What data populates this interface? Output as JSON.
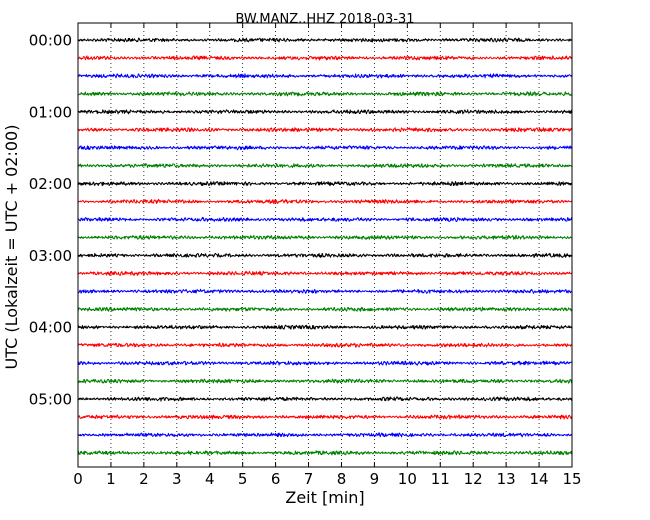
{
  "chart_data": {
    "type": "line",
    "chart_subtype": "seismogram-helicorder",
    "title": "BW.MANZ..HHZ 2018-03-31",
    "xlabel": "Zeit  [min]",
    "ylabel": "UTC (Lokalzeit = UTC + 02:00)",
    "x_range": [
      0,
      15
    ],
    "x_ticks": [
      0,
      1,
      2,
      3,
      4,
      5,
      6,
      7,
      8,
      9,
      10,
      11,
      12,
      13,
      14,
      15
    ],
    "x_tick_labels": [
      "0",
      "1",
      "2",
      "3",
      "4",
      "5",
      "6",
      "7",
      "8",
      "9",
      "10",
      "11",
      "12",
      "13",
      "14",
      "15"
    ],
    "vertical_grid": "dotted at each minute",
    "y_tick_labels": [
      "00:00",
      "01:00",
      "02:00",
      "03:00",
      "04:00",
      "05:00"
    ],
    "trace_interval_minutes": 15,
    "trace_count": 24,
    "trace_colors": [
      "#000000",
      "#ff0000",
      "#0000ff",
      "#008000"
    ],
    "series": [
      {
        "start": "00:00",
        "color": "#000000"
      },
      {
        "start": "00:15",
        "color": "#ff0000"
      },
      {
        "start": "00:30",
        "color": "#0000ff"
      },
      {
        "start": "00:45",
        "color": "#008000"
      },
      {
        "start": "01:00",
        "color": "#000000"
      },
      {
        "start": "01:15",
        "color": "#ff0000"
      },
      {
        "start": "01:30",
        "color": "#0000ff"
      },
      {
        "start": "01:45",
        "color": "#008000"
      },
      {
        "start": "02:00",
        "color": "#000000"
      },
      {
        "start": "02:15",
        "color": "#ff0000"
      },
      {
        "start": "02:30",
        "color": "#0000ff"
      },
      {
        "start": "02:45",
        "color": "#008000"
      },
      {
        "start": "03:00",
        "color": "#000000"
      },
      {
        "start": "03:15",
        "color": "#ff0000"
      },
      {
        "start": "03:30",
        "color": "#0000ff"
      },
      {
        "start": "03:45",
        "color": "#008000"
      },
      {
        "start": "04:00",
        "color": "#000000"
      },
      {
        "start": "04:15",
        "color": "#ff0000"
      },
      {
        "start": "04:30",
        "color": "#0000ff"
      },
      {
        "start": "04:45",
        "color": "#008000"
      },
      {
        "start": "05:00",
        "color": "#000000"
      },
      {
        "start": "05:15",
        "color": "#ff0000"
      },
      {
        "start": "05:30",
        "color": "#0000ff"
      },
      {
        "start": "05:45",
        "color": "#008000"
      }
    ]
  }
}
